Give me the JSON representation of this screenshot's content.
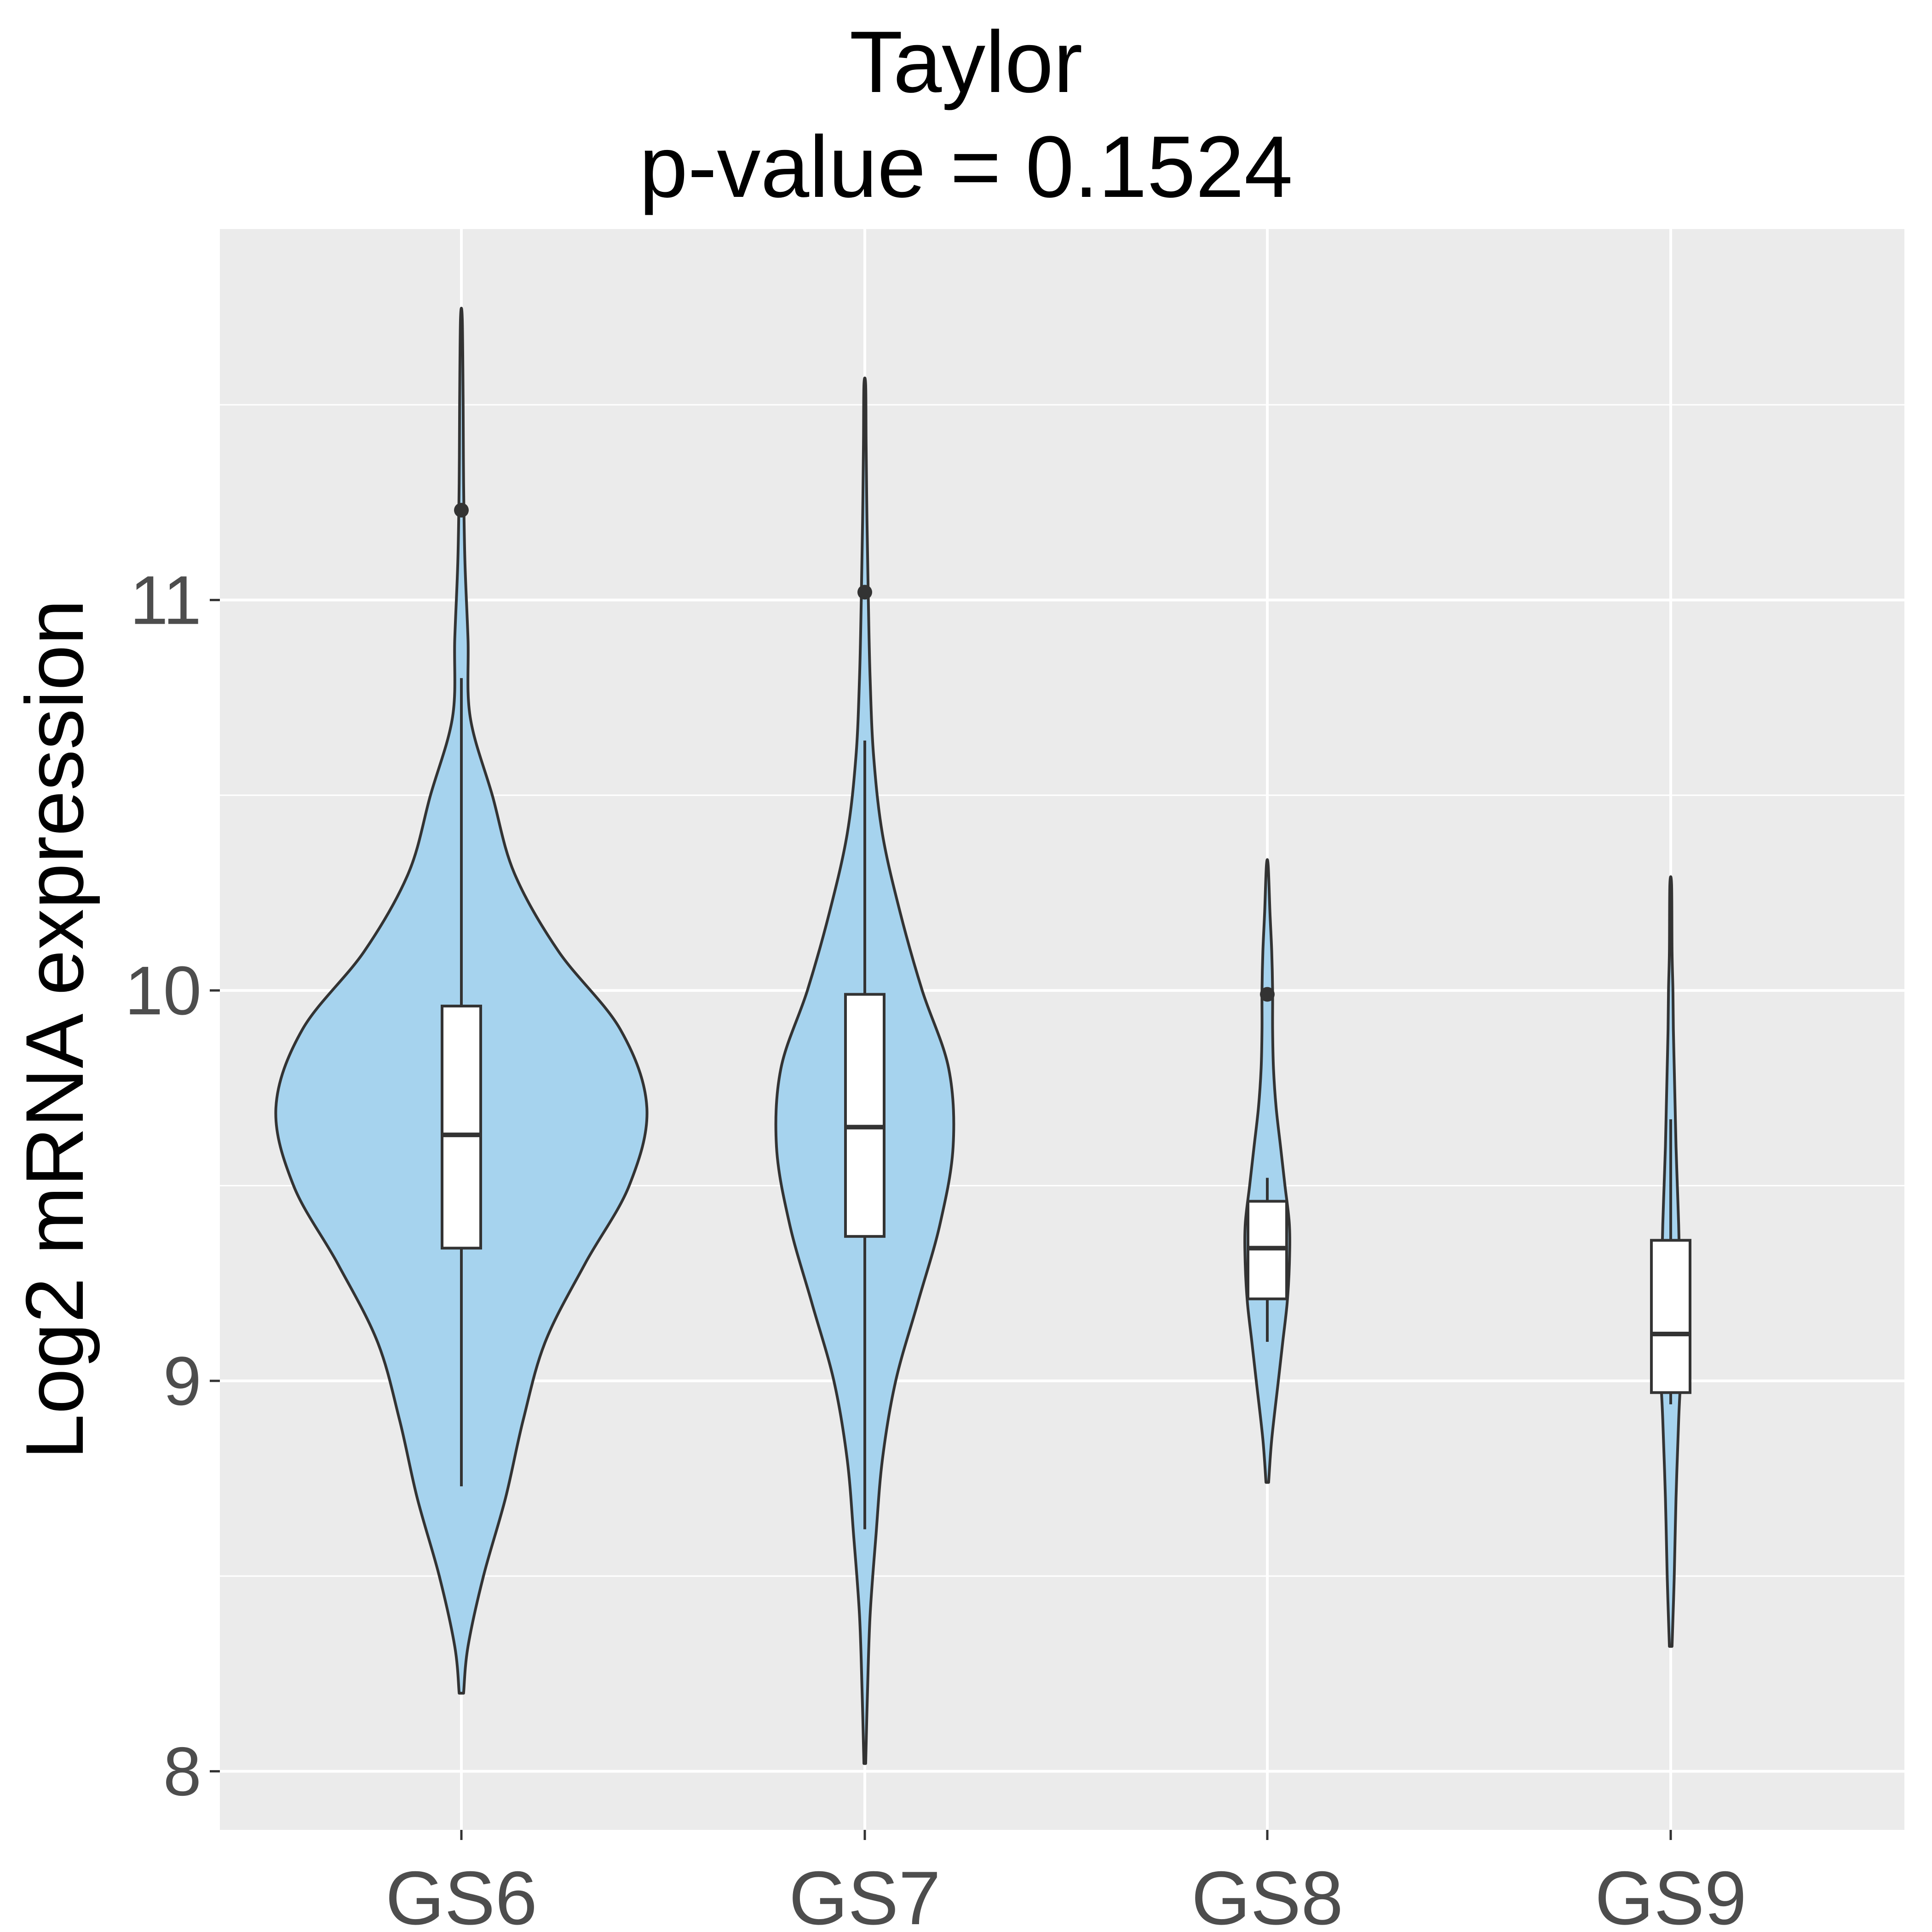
{
  "chart_data": {
    "type": "violin",
    "title": "Taylor",
    "subtitle": "p-value = 0.1524",
    "xlabel": "",
    "ylabel": "Log2 mRNA expression",
    "ylim": [
      7.85,
      11.95
    ],
    "yticks": [
      8,
      9,
      10,
      11
    ],
    "categories": [
      "GS6",
      "GS7",
      "GS8",
      "GS9"
    ],
    "grid": true,
    "legend": "none",
    "colors": {
      "panel": "#ebebeb",
      "grid": "#ffffff",
      "violin_fill": "#a6d3ee",
      "outline": "#333333",
      "box_fill": "#ffffff",
      "tick_text": "#4d4d4d"
    },
    "groups": [
      {
        "name": "GS6",
        "box": {
          "q1": 9.34,
          "median": 9.63,
          "q3": 9.96,
          "whisker_low": 8.73,
          "whisker_high": 10.8
        },
        "outliers": [
          11.23
        ],
        "violin": {
          "y": [
            8.2,
            8.32,
            8.5,
            8.7,
            8.9,
            9.1,
            9.3,
            9.5,
            9.7,
            9.9,
            10.1,
            10.3,
            10.5,
            10.7,
            10.9,
            11.1,
            11.3,
            11.5,
            11.72
          ],
          "halfwidth": [
            0.005,
            0.015,
            0.05,
            0.1,
            0.14,
            0.19,
            0.28,
            0.38,
            0.42,
            0.36,
            0.22,
            0.12,
            0.07,
            0.02,
            0.015,
            0.008,
            0.005,
            0.004,
            0.002
          ]
        }
      },
      {
        "name": "GS7",
        "box": {
          "q1": 9.37,
          "median": 9.65,
          "q3": 9.99,
          "whisker_low": 8.62,
          "whisker_high": 10.64
        },
        "outliers": [
          11.02
        ],
        "violin": {
          "y": [
            8.02,
            8.2,
            8.4,
            8.6,
            8.8,
            9.0,
            9.2,
            9.4,
            9.6,
            9.8,
            10.0,
            10.2,
            10.4,
            10.6,
            10.8,
            11.0,
            11.2,
            11.4,
            11.55
          ],
          "halfwidth": [
            0.002,
            0.006,
            0.012,
            0.025,
            0.04,
            0.07,
            0.12,
            0.17,
            0.2,
            0.19,
            0.13,
            0.08,
            0.04,
            0.02,
            0.012,
            0.008,
            0.005,
            0.003,
            0.002
          ]
        }
      },
      {
        "name": "GS8",
        "box": {
          "q1": 9.21,
          "median": 9.34,
          "q3": 9.46,
          "whisker_low": 9.1,
          "whisker_high": 9.52
        },
        "outliers": [
          9.99
        ],
        "violin": {
          "y": [
            8.74,
            8.85,
            9.0,
            9.1,
            9.2,
            9.3,
            9.4,
            9.5,
            9.6,
            9.7,
            9.8,
            9.9,
            10.0,
            10.1,
            10.2,
            10.32
          ],
          "halfwidth": [
            0.003,
            0.01,
            0.025,
            0.035,
            0.045,
            0.05,
            0.05,
            0.04,
            0.03,
            0.02,
            0.014,
            0.012,
            0.012,
            0.01,
            0.006,
            0.002
          ]
        }
      },
      {
        "name": "GS9",
        "box": {
          "q1": 8.97,
          "median": 9.12,
          "q3": 9.36,
          "whisker_low": 8.94,
          "whisker_high": 9.67
        },
        "outliers": [],
        "violin": {
          "y": [
            8.32,
            8.5,
            8.7,
            8.9,
            9.0,
            9.1,
            9.2,
            9.3,
            9.4,
            9.5,
            9.6,
            9.7,
            9.8,
            9.9,
            10.0,
            10.1,
            10.27
          ],
          "halfwidth": [
            0.003,
            0.008,
            0.012,
            0.018,
            0.022,
            0.024,
            0.022,
            0.02,
            0.018,
            0.015,
            0.012,
            0.01,
            0.008,
            0.006,
            0.005,
            0.003,
            0.002
          ]
        }
      }
    ]
  }
}
